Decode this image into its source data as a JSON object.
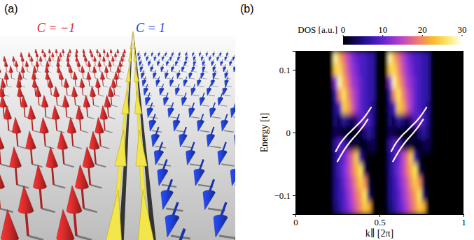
{
  "panel_a": {
    "label": "(a)",
    "domains": [
      {
        "label": "C = −1",
        "color": "#d42a2a"
      },
      {
        "label": "C = 1",
        "color": "#1f3fd6"
      }
    ]
  },
  "chart_data": {
    "type": "heatmap",
    "panel_label": "(b)",
    "xlabel": "k∥ [2π]",
    "ylabel": "Energy [t]",
    "xlim": [
      0,
      1
    ],
    "ylim": [
      -0.13,
      0.13
    ],
    "xticks": [
      0,
      0.5,
      1
    ],
    "yticks": [
      {
        "value": -0.1,
        "label": "−0.1"
      },
      0,
      0.1
    ],
    "colorbar": {
      "title": "DOS [a.u.]",
      "range": [
        0,
        30
      ],
      "ticks": [
        0,
        10,
        20,
        30
      ]
    },
    "cells": {
      "x": [
        0.0125,
        0.0375,
        0.0625,
        0.0875,
        0.1125,
        0.1375,
        0.1625,
        0.1875,
        0.2125,
        0.2375,
        0.2625,
        0.2875,
        0.3125,
        0.3375,
        0.3625,
        0.3875,
        0.4125,
        0.4375,
        0.4625,
        0.4875,
        0.5125,
        0.5375,
        0.5625,
        0.5875,
        0.6125,
        0.6375,
        0.6625,
        0.6875,
        0.7125,
        0.7375,
        0.7625,
        0.7875,
        0.8125,
        0.8375,
        0.8625,
        0.8875,
        0.9125,
        0.9375,
        0.9625,
        0.9875
      ],
      "y": [
        0.12,
        0.1,
        0.08,
        0.06,
        0.04,
        0.02,
        0,
        -0.02,
        -0.04,
        -0.06,
        -0.08,
        -0.1,
        -0.12
      ],
      "values": [
        [
          0,
          0,
          0,
          0,
          0,
          0,
          0,
          0,
          0,
          28,
          22,
          18,
          15,
          12,
          10,
          9,
          8,
          7,
          6,
          0,
          0,
          0,
          28,
          22,
          18,
          15,
          12,
          10,
          9,
          8,
          7,
          6,
          0,
          0,
          0,
          0,
          0,
          0,
          0,
          0
        ],
        [
          0,
          0,
          0,
          0,
          0,
          0,
          0,
          0,
          0,
          24,
          25,
          20,
          16,
          13,
          11,
          9,
          8,
          7,
          6,
          0,
          0,
          0,
          24,
          25,
          20,
          16,
          13,
          11,
          9,
          8,
          7,
          6,
          0,
          0,
          0,
          0,
          0,
          0,
          0,
          0
        ],
        [
          0,
          0,
          0,
          0,
          0,
          0,
          0,
          0,
          0,
          12,
          28,
          22,
          18,
          14,
          12,
          10,
          8,
          7,
          6,
          0,
          0,
          0,
          12,
          28,
          22,
          18,
          14,
          12,
          10,
          8,
          7,
          6,
          0,
          0,
          0,
          0,
          0,
          0,
          0,
          0
        ],
        [
          0,
          0,
          0,
          0,
          0,
          0,
          0,
          0,
          0,
          6,
          20,
          26,
          20,
          16,
          13,
          10,
          8,
          7,
          6,
          0,
          0,
          0,
          6,
          20,
          26,
          20,
          16,
          13,
          10,
          8,
          7,
          6,
          0,
          0,
          0,
          0,
          0,
          0,
          0,
          0
        ],
        [
          0,
          0,
          0,
          0,
          0,
          0,
          0,
          0,
          0,
          5,
          8,
          24,
          22,
          17,
          13,
          10,
          8,
          7,
          5,
          0,
          0,
          0,
          5,
          8,
          24,
          22,
          17,
          13,
          10,
          8,
          7,
          5,
          0,
          0,
          0,
          0,
          0,
          0,
          0,
          0
        ],
        [
          0,
          0,
          0,
          0,
          0,
          0,
          0,
          0,
          0,
          4,
          3,
          6,
          4,
          3,
          5,
          9,
          10,
          8,
          5,
          0,
          0,
          0,
          4,
          3,
          6,
          4,
          3,
          5,
          9,
          10,
          8,
          5,
          0,
          0,
          0,
          0,
          0,
          0,
          0,
          0
        ],
        [
          0,
          0,
          0,
          0,
          0,
          0,
          0,
          0,
          0,
          3,
          2,
          1,
          1,
          1,
          1,
          2,
          4,
          6,
          4,
          0,
          0,
          0,
          3,
          2,
          1,
          1,
          1,
          1,
          2,
          4,
          6,
          4,
          0,
          0,
          0,
          0,
          0,
          0,
          0,
          0
        ],
        [
          0,
          0,
          0,
          0,
          0,
          0,
          0,
          0,
          0,
          6,
          9,
          8,
          4,
          2,
          2,
          1,
          1,
          2,
          3,
          0,
          0,
          0,
          6,
          9,
          8,
          4,
          2,
          2,
          1,
          1,
          2,
          3,
          0,
          0,
          0,
          0,
          0,
          0,
          0,
          0
        ],
        [
          0,
          0,
          0,
          0,
          0,
          0,
          0,
          0,
          0,
          5,
          8,
          10,
          14,
          18,
          24,
          6,
          2,
          0,
          0,
          0,
          0,
          0,
          5,
          8,
          10,
          14,
          18,
          24,
          6,
          2,
          0,
          0,
          0,
          0,
          0,
          0,
          0,
          0,
          0,
          0
        ],
        [
          0,
          0,
          0,
          0,
          0,
          0,
          0,
          0,
          0,
          5,
          8,
          11,
          14,
          18,
          22,
          26,
          3,
          0,
          0,
          0,
          0,
          0,
          5,
          8,
          11,
          14,
          18,
          22,
          26,
          3,
          0,
          0,
          0,
          0,
          0,
          0,
          0,
          0,
          0,
          0
        ],
        [
          0,
          0,
          0,
          0,
          0,
          0,
          0,
          0,
          0,
          5,
          7,
          10,
          13,
          16,
          20,
          24,
          20,
          2,
          0,
          0,
          0,
          0,
          5,
          7,
          10,
          13,
          16,
          20,
          24,
          20,
          2,
          0,
          0,
          0,
          0,
          0,
          0,
          0,
          0,
          0
        ],
        [
          0,
          0,
          0,
          0,
          0,
          0,
          0,
          0,
          0,
          5,
          7,
          9,
          12,
          15,
          18,
          21,
          26,
          4,
          0,
          0,
          0,
          0,
          5,
          7,
          9,
          12,
          15,
          18,
          21,
          26,
          4,
          0,
          0,
          0,
          0,
          0,
          0,
          0,
          0,
          0
        ],
        [
          0,
          0,
          0,
          0,
          0,
          0,
          0,
          0,
          0,
          4,
          6,
          9,
          11,
          14,
          17,
          20,
          24,
          22,
          0,
          0,
          0,
          0,
          4,
          6,
          9,
          11,
          14,
          17,
          20,
          24,
          22,
          0,
          0,
          0,
          0,
          0,
          0,
          0,
          0,
          0
        ]
      ]
    },
    "series": [
      {
        "type": "line",
        "color": "#fff4d6",
        "x": [
          0.24,
          0.27,
          0.3,
          0.33,
          0.36,
          0.39,
          0.42,
          0.45
        ],
        "values": [
          -0.03,
          -0.016,
          -0.006,
          0.002,
          0.01,
          0.018,
          0.028,
          0.04
        ]
      },
      {
        "type": "line",
        "color": "#fff4d6",
        "x": [
          0.25,
          0.28,
          0.31,
          0.34,
          0.37,
          0.4,
          0.43
        ],
        "values": [
          -0.046,
          -0.032,
          -0.02,
          -0.01,
          -0.001,
          0.009,
          0.021
        ]
      },
      {
        "type": "line",
        "color": "#fff4d6",
        "x": [
          0.57,
          0.6,
          0.63,
          0.66,
          0.69,
          0.72,
          0.75,
          0.78
        ],
        "values": [
          -0.03,
          -0.016,
          -0.006,
          0.002,
          0.01,
          0.018,
          0.028,
          0.04
        ]
      },
      {
        "type": "line",
        "color": "#fff4d6",
        "x": [
          0.58,
          0.61,
          0.64,
          0.67,
          0.7,
          0.73,
          0.76
        ],
        "values": [
          -0.046,
          -0.032,
          -0.02,
          -0.01,
          -0.001,
          0.009,
          0.021
        ]
      }
    ]
  }
}
